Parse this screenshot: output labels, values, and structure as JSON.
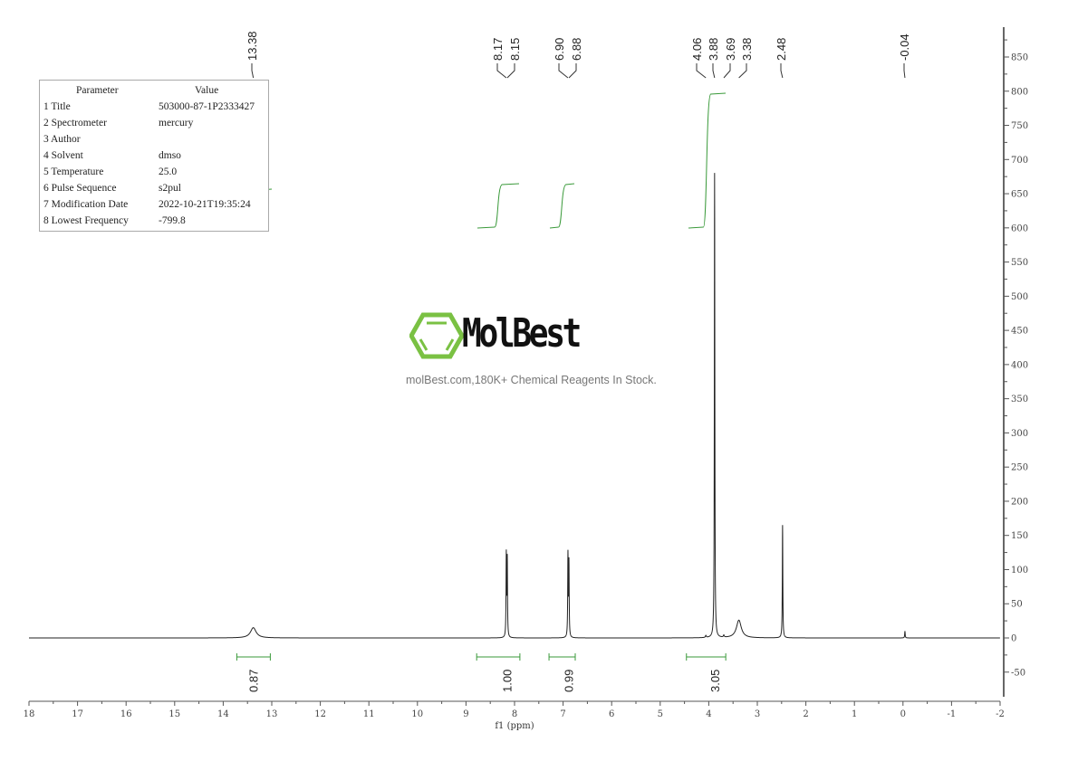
{
  "chart_data": {
    "type": "line",
    "title": "",
    "xlabel": "f1 (ppm)",
    "ylabel": "",
    "xlim": [
      18,
      -2
    ],
    "ylim": [
      -80,
      900
    ],
    "x_ticks": [
      "18",
      "17",
      "16",
      "15",
      "14",
      "13",
      "12",
      "11",
      "10",
      "9",
      "8",
      "7",
      "6",
      "5",
      "4",
      "3",
      "2",
      "1",
      "0",
      "-1",
      "-2"
    ],
    "y_ticks": [
      "850",
      "800",
      "750",
      "700",
      "650",
      "600",
      "550",
      "500",
      "450",
      "400",
      "350",
      "300",
      "250",
      "200",
      "150",
      "100",
      "50",
      "0",
      "-50"
    ],
    "grid": false,
    "colors": {
      "spectrum": "#222222",
      "integral": "#3a9a3a",
      "axis": "#555555"
    },
    "peaks": [
      {
        "ppm": 13.38,
        "height": 15,
        "width": 0.07
      },
      {
        "ppm": 8.17,
        "height": 120,
        "width": 0.006
      },
      {
        "ppm": 8.15,
        "height": 113,
        "width": 0.006
      },
      {
        "ppm": 6.9,
        "height": 120,
        "width": 0.006
      },
      {
        "ppm": 6.88,
        "height": 108,
        "width": 0.006
      },
      {
        "ppm": 4.06,
        "height": 3,
        "width": 0.01
      },
      {
        "ppm": 3.88,
        "height": 680,
        "width": 0.006
      },
      {
        "ppm": 3.69,
        "height": 3,
        "width": 0.01
      },
      {
        "ppm": 3.38,
        "height": 26,
        "width": 0.06
      },
      {
        "ppm": 2.48,
        "height": 165,
        "width": 0.006
      },
      {
        "ppm": -0.04,
        "height": 10,
        "width": 0.006
      }
    ],
    "peak_labels": [
      "13.38",
      "8.17",
      "8.15",
      "6.90",
      "6.88",
      "4.06",
      "3.88",
      "3.69",
      "3.38",
      "2.48",
      "-0.04"
    ],
    "integrals": [
      {
        "label": "0.87",
        "from": 13.72,
        "to": 13.03,
        "center": 13.38
      },
      {
        "label": "1.00",
        "from": 8.78,
        "to": 7.89,
        "center": 8.16
      },
      {
        "label": "0.99",
        "from": 7.29,
        "to": 6.75,
        "center": 6.89
      },
      {
        "label": "3.05",
        "from": 4.46,
        "to": 3.65,
        "center": 3.88
      }
    ]
  },
  "parameters": {
    "header": {
      "param": "Parameter",
      "value": "Value"
    },
    "rows": [
      {
        "param": "1 Title",
        "value": "503000-87-1P2333427"
      },
      {
        "param": "2 Spectrometer",
        "value": "mercury"
      },
      {
        "param": "3 Author",
        "value": ""
      },
      {
        "param": "4 Solvent",
        "value": "dmso"
      },
      {
        "param": "5 Temperature",
        "value": "25.0"
      },
      {
        "param": "6 Pulse Sequence",
        "value": "s2pul"
      },
      {
        "param": "7 Modification Date",
        "value": "2022-10-21T19:35:24"
      },
      {
        "param": "8 Lowest Frequency",
        "value": "-799.8"
      }
    ]
  },
  "watermark": {
    "name": "MolBest",
    "tagline": "molBest.com,180K+ Chemical Reagents In Stock.",
    "logo_color": "#7ac143"
  }
}
